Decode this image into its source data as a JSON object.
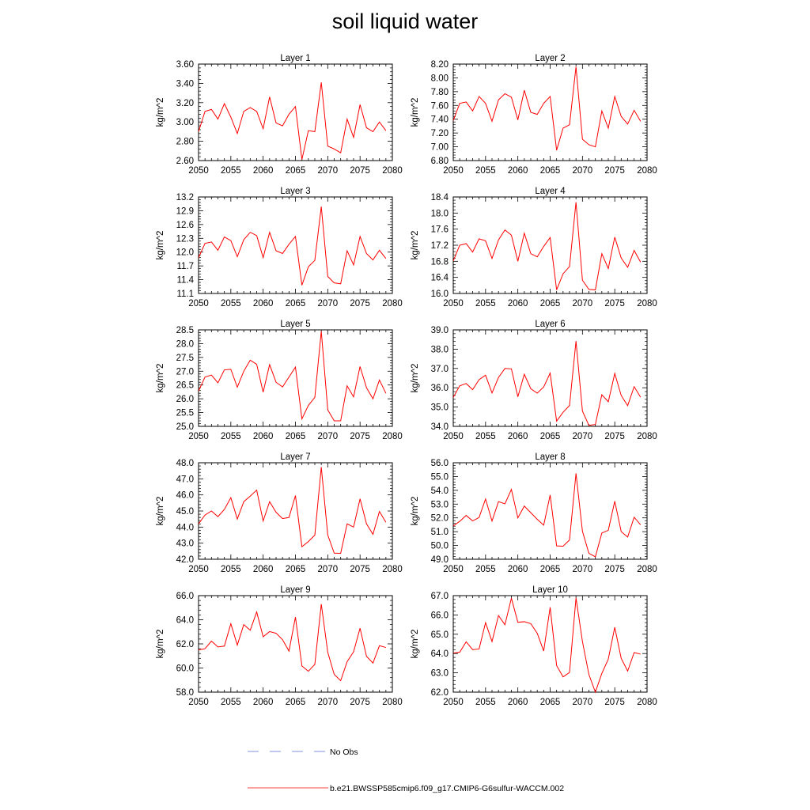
{
  "title": "soil liquid water",
  "legend": {
    "no_obs_label": "No Obs",
    "model_label": "b.e21.BWSSP585cmip6.f09_g17.CMIP6-G6sulfur-WACCM.002",
    "no_obs_color": "#5a6fd0",
    "model_color": "#ff0000"
  },
  "chart_data": [
    {
      "type": "line",
      "title": "Layer 1",
      "xlabel": "",
      "ylabel": "kg/m^2",
      "xlim": [
        2050,
        2080
      ],
      "ylim": [
        2.6,
        3.6
      ],
      "xticks": [
        2050,
        2055,
        2060,
        2065,
        2070,
        2075,
        2080
      ],
      "yticks": [
        "2.60",
        "2.80",
        "3.00",
        "3.20",
        "3.40",
        "3.60"
      ],
      "x": [
        2050,
        2051,
        2052,
        2053,
        2054,
        2055,
        2056,
        2057,
        2058,
        2059,
        2060,
        2061,
        2062,
        2063,
        2064,
        2065,
        2066,
        2067,
        2068,
        2069,
        2070,
        2071,
        2072,
        2073,
        2074,
        2075,
        2076,
        2077,
        2078,
        2079
      ],
      "series": [
        {
          "values": [
            2.9,
            3.11,
            3.13,
            3.03,
            3.19,
            3.05,
            2.88,
            3.11,
            3.15,
            3.11,
            2.93,
            3.26,
            2.99,
            2.96,
            3.08,
            3.16,
            2.61,
            2.91,
            2.9,
            3.41,
            2.75,
            2.72,
            2.68,
            3.03,
            2.84,
            3.18,
            2.94,
            2.9,
            3.0,
            2.91
          ]
        }
      ]
    },
    {
      "type": "line",
      "title": "Layer 2",
      "xlabel": "",
      "ylabel": "kg/m^2",
      "xlim": [
        2050,
        2080
      ],
      "ylim": [
        6.8,
        8.2
      ],
      "xticks": [
        2050,
        2055,
        2060,
        2065,
        2070,
        2075,
        2080
      ],
      "yticks": [
        "6.80",
        "7.00",
        "7.20",
        "7.40",
        "7.60",
        "7.80",
        "8.00",
        "8.20"
      ],
      "x": [
        2050,
        2051,
        2052,
        2053,
        2054,
        2055,
        2056,
        2057,
        2058,
        2059,
        2060,
        2061,
        2062,
        2063,
        2064,
        2065,
        2066,
        2067,
        2068,
        2069,
        2070,
        2071,
        2072,
        2073,
        2074,
        2075,
        2076,
        2077,
        2078,
        2079
      ],
      "series": [
        {
          "values": [
            7.38,
            7.63,
            7.65,
            7.52,
            7.73,
            7.63,
            7.37,
            7.68,
            7.77,
            7.72,
            7.39,
            7.82,
            7.5,
            7.47,
            7.63,
            7.73,
            6.95,
            7.27,
            7.32,
            8.16,
            7.11,
            7.03,
            7.0,
            7.52,
            7.27,
            7.73,
            7.44,
            7.33,
            7.53,
            7.37
          ]
        }
      ]
    },
    {
      "type": "line",
      "title": "Layer 3",
      "xlabel": "",
      "ylabel": "kg/m^2",
      "xlim": [
        2050,
        2080
      ],
      "ylim": [
        11.1,
        13.2
      ],
      "xticks": [
        2050,
        2055,
        2060,
        2065,
        2070,
        2075,
        2080
      ],
      "yticks": [
        "11.1",
        "11.4",
        "11.7",
        "12.0",
        "12.3",
        "12.6",
        "12.9",
        "13.2"
      ],
      "x": [
        2050,
        2051,
        2052,
        2053,
        2054,
        2055,
        2056,
        2057,
        2058,
        2059,
        2060,
        2061,
        2062,
        2063,
        2064,
        2065,
        2066,
        2067,
        2068,
        2069,
        2070,
        2071,
        2072,
        2073,
        2074,
        2075,
        2076,
        2077,
        2078,
        2079
      ],
      "series": [
        {
          "values": [
            11.88,
            12.19,
            12.22,
            12.04,
            12.33,
            12.25,
            11.9,
            12.27,
            12.43,
            12.36,
            11.88,
            12.43,
            12.03,
            11.97,
            12.17,
            12.34,
            11.28,
            11.68,
            11.82,
            12.99,
            11.47,
            11.33,
            11.31,
            12.03,
            11.72,
            12.34,
            11.97,
            11.83,
            12.04,
            11.86
          ]
        }
      ]
    },
    {
      "type": "line",
      "title": "Layer 4",
      "xlabel": "",
      "ylabel": "kg/m^2",
      "xlim": [
        2050,
        2080
      ],
      "ylim": [
        16.0,
        18.4
      ],
      "xticks": [
        2050,
        2055,
        2060,
        2065,
        2070,
        2075,
        2080
      ],
      "yticks": [
        "16.0",
        "16.4",
        "16.8",
        "17.2",
        "17.6",
        "18.0",
        "18.4"
      ],
      "x": [
        2050,
        2051,
        2052,
        2053,
        2054,
        2055,
        2056,
        2057,
        2058,
        2059,
        2060,
        2061,
        2062,
        2063,
        2064,
        2065,
        2066,
        2067,
        2068,
        2069,
        2070,
        2071,
        2072,
        2073,
        2074,
        2075,
        2076,
        2077,
        2078,
        2079
      ],
      "series": [
        {
          "values": [
            16.81,
            17.2,
            17.24,
            17.03,
            17.36,
            17.31,
            16.87,
            17.33,
            17.58,
            17.45,
            16.8,
            17.5,
            16.99,
            16.91,
            17.17,
            17.39,
            16.09,
            16.49,
            16.67,
            18.27,
            16.33,
            16.1,
            16.09,
            16.99,
            16.62,
            17.4,
            16.88,
            16.65,
            17.07,
            16.78
          ]
        }
      ]
    },
    {
      "type": "line",
      "title": "Layer 5",
      "xlabel": "",
      "ylabel": "kg/m^2",
      "xlim": [
        2050,
        2080
      ],
      "ylim": [
        25.0,
        28.5
      ],
      "xticks": [
        2050,
        2055,
        2060,
        2065,
        2070,
        2075,
        2080
      ],
      "yticks": [
        "25.0",
        "25.5",
        "26.0",
        "26.5",
        "27.0",
        "27.5",
        "28.0",
        "28.5"
      ],
      "x": [
        2050,
        2051,
        2052,
        2053,
        2054,
        2055,
        2056,
        2057,
        2058,
        2059,
        2060,
        2061,
        2062,
        2063,
        2064,
        2065,
        2066,
        2067,
        2068,
        2069,
        2070,
        2071,
        2072,
        2073,
        2074,
        2075,
        2076,
        2077,
        2078,
        2079
      ],
      "series": [
        {
          "values": [
            26.28,
            26.79,
            26.86,
            26.58,
            27.05,
            27.07,
            26.42,
            27.0,
            27.4,
            27.25,
            26.24,
            27.24,
            26.6,
            26.43,
            26.79,
            27.15,
            25.27,
            25.76,
            26.05,
            28.45,
            25.6,
            25.2,
            25.2,
            26.47,
            26.07,
            27.17,
            26.4,
            26.0,
            26.68,
            26.2
          ]
        }
      ]
    },
    {
      "type": "line",
      "title": "Layer 6",
      "xlabel": "",
      "ylabel": "kg/m^2",
      "xlim": [
        2050,
        2080
      ],
      "ylim": [
        34.0,
        39.0
      ],
      "xticks": [
        2050,
        2055,
        2060,
        2065,
        2070,
        2075,
        2080
      ],
      "yticks": [
        "34.0",
        "35.0",
        "36.0",
        "37.0",
        "38.0",
        "39.0"
      ],
      "x": [
        2050,
        2051,
        2052,
        2053,
        2054,
        2055,
        2056,
        2057,
        2058,
        2059,
        2060,
        2061,
        2062,
        2063,
        2064,
        2065,
        2066,
        2067,
        2068,
        2069,
        2070,
        2071,
        2072,
        2073,
        2074,
        2075,
        2076,
        2077,
        2078,
        2079
      ],
      "series": [
        {
          "values": [
            35.5,
            36.1,
            36.22,
            35.9,
            36.42,
            36.65,
            35.73,
            36.53,
            37.0,
            36.98,
            35.53,
            36.7,
            35.95,
            35.72,
            36.04,
            36.76,
            34.27,
            34.73,
            35.08,
            38.42,
            34.79,
            34.05,
            34.1,
            35.64,
            35.27,
            36.74,
            35.6,
            35.07,
            36.06,
            35.51
          ]
        }
      ]
    },
    {
      "type": "line",
      "title": "Layer 7",
      "xlabel": "",
      "ylabel": "kg/m^2",
      "xlim": [
        2050,
        2080
      ],
      "ylim": [
        42.0,
        48.0
      ],
      "xticks": [
        2050,
        2055,
        2060,
        2065,
        2070,
        2075,
        2080
      ],
      "yticks": [
        "42.0",
        "43.0",
        "44.0",
        "45.0",
        "46.0",
        "47.0",
        "48.0"
      ],
      "x": [
        2050,
        2051,
        2052,
        2053,
        2054,
        2055,
        2056,
        2057,
        2058,
        2059,
        2060,
        2061,
        2062,
        2063,
        2064,
        2065,
        2066,
        2067,
        2068,
        2069,
        2070,
        2071,
        2072,
        2073,
        2074,
        2075,
        2076,
        2077,
        2078,
        2079
      ],
      "series": [
        {
          "values": [
            44.2,
            44.75,
            45.0,
            44.65,
            45.1,
            45.83,
            44.5,
            45.58,
            45.92,
            46.3,
            44.38,
            45.58,
            44.92,
            44.53,
            44.6,
            45.96,
            42.78,
            43.1,
            43.5,
            47.73,
            43.51,
            42.38,
            42.37,
            44.2,
            44.0,
            45.76,
            44.2,
            43.55,
            44.97,
            44.3
          ]
        }
      ]
    },
    {
      "type": "line",
      "title": "Layer 8",
      "xlabel": "",
      "ylabel": "kg/m^2",
      "xlim": [
        2050,
        2080
      ],
      "ylim": [
        49.0,
        56.0
      ],
      "xticks": [
        2050,
        2055,
        2060,
        2065,
        2070,
        2075,
        2080
      ],
      "yticks": [
        "49.0",
        "50.0",
        "51.0",
        "52.0",
        "53.0",
        "54.0",
        "55.0",
        "56.0"
      ],
      "x": [
        2050,
        2051,
        2052,
        2053,
        2054,
        2055,
        2056,
        2057,
        2058,
        2059,
        2060,
        2061,
        2062,
        2063,
        2064,
        2065,
        2066,
        2067,
        2068,
        2069,
        2070,
        2071,
        2072,
        2073,
        2074,
        2075,
        2076,
        2077,
        2078,
        2079
      ],
      "series": [
        {
          "values": [
            51.42,
            51.75,
            52.18,
            51.78,
            52.03,
            53.37,
            51.77,
            53.18,
            53.02,
            54.07,
            52.0,
            52.86,
            52.38,
            51.9,
            51.47,
            53.66,
            49.97,
            49.95,
            50.4,
            55.23,
            51.03,
            49.43,
            49.18,
            50.9,
            51.1,
            53.21,
            51.0,
            50.61,
            52.05,
            51.5
          ]
        }
      ]
    },
    {
      "type": "line",
      "title": "Layer 9",
      "xlabel": "",
      "ylabel": "kg/m^2",
      "xlim": [
        2050,
        2080
      ],
      "ylim": [
        58.0,
        66.0
      ],
      "xticks": [
        2050,
        2055,
        2060,
        2065,
        2070,
        2075,
        2080
      ],
      "yticks": [
        "58.0",
        "60.0",
        "62.0",
        "64.0",
        "66.0"
      ],
      "x": [
        2050,
        2051,
        2052,
        2053,
        2054,
        2055,
        2056,
        2057,
        2058,
        2059,
        2060,
        2061,
        2062,
        2063,
        2064,
        2065,
        2066,
        2067,
        2068,
        2069,
        2070,
        2071,
        2072,
        2073,
        2074,
        2075,
        2076,
        2077,
        2078,
        2079
      ],
      "series": [
        {
          "values": [
            61.5,
            61.6,
            62.23,
            61.75,
            61.82,
            63.67,
            61.9,
            63.6,
            63.13,
            64.65,
            62.59,
            63.02,
            62.88,
            62.35,
            61.4,
            64.22,
            60.17,
            59.73,
            60.3,
            65.3,
            61.31,
            59.47,
            58.95,
            60.53,
            61.34,
            63.3,
            60.97,
            60.41,
            61.85,
            61.7
          ]
        }
      ]
    },
    {
      "type": "line",
      "title": "Layer 10",
      "xlabel": "",
      "ylabel": "kg/m^2",
      "xlim": [
        2050,
        2080
      ],
      "ylim": [
        62.0,
        67.0
      ],
      "xticks": [
        2050,
        2055,
        2060,
        2065,
        2070,
        2075,
        2080
      ],
      "yticks": [
        "62.0",
        "63.0",
        "64.0",
        "65.0",
        "66.0",
        "67.0"
      ],
      "x": [
        2050,
        2051,
        2052,
        2053,
        2054,
        2055,
        2056,
        2057,
        2058,
        2059,
        2060,
        2061,
        2062,
        2063,
        2064,
        2065,
        2066,
        2067,
        2068,
        2069,
        2070,
        2071,
        2072,
        2073,
        2074,
        2075,
        2076,
        2077,
        2078,
        2079
      ],
      "series": [
        {
          "values": [
            64.03,
            64.07,
            64.61,
            64.2,
            64.24,
            65.6,
            64.62,
            65.97,
            65.49,
            66.87,
            65.62,
            65.65,
            65.55,
            65.05,
            64.13,
            66.4,
            63.38,
            62.79,
            63.02,
            66.88,
            64.62,
            62.91,
            62.0,
            62.97,
            63.71,
            65.36,
            63.75,
            63.09,
            64.05,
            63.97
          ]
        }
      ]
    }
  ]
}
